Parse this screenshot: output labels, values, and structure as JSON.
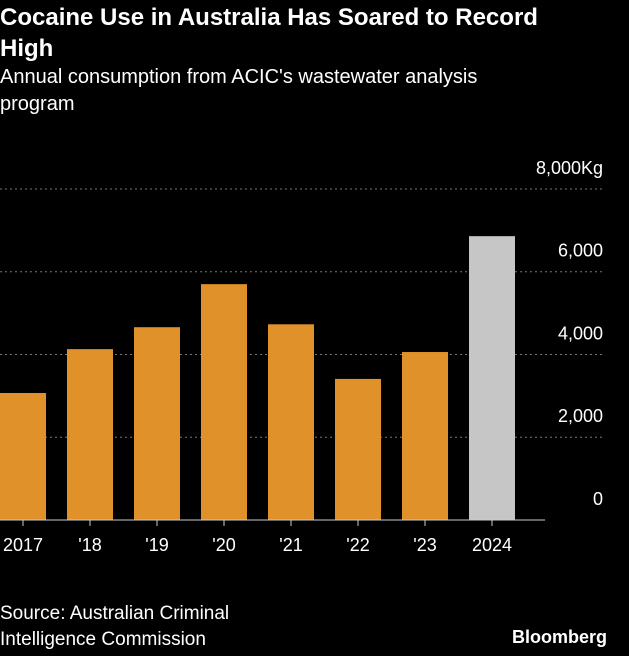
{
  "chart_data": {
    "type": "bar",
    "title": "Cocaine Use in Australia Has Soared to Record High",
    "subtitle": "Annual consumption from ACIC's wastewater analysis program",
    "categories": [
      "2017",
      "'18",
      "'19",
      "'20",
      "'21",
      "'22",
      "'23",
      "2024"
    ],
    "values": [
      3070,
      4130,
      4660,
      5700,
      4730,
      3410,
      4060,
      6860
    ],
    "colors": [
      "#e0912a",
      "#e0912a",
      "#e0912a",
      "#e0912a",
      "#e0912a",
      "#e0912a",
      "#e0912a",
      "#c6c6c6"
    ],
    "ylim": [
      0,
      8000
    ],
    "yticks": [
      0,
      {
        "value": 2000,
        "label": "2,000"
      },
      {
        "value": 4000,
        "label": "4,000"
      },
      {
        "value": 6000,
        "label": "6,000"
      },
      {
        "value": 8000,
        "label": "8,000Kg"
      }
    ],
    "grid": true,
    "source": "Source: Australian Criminal Intelligence Commission",
    "brand": "Bloomberg"
  }
}
